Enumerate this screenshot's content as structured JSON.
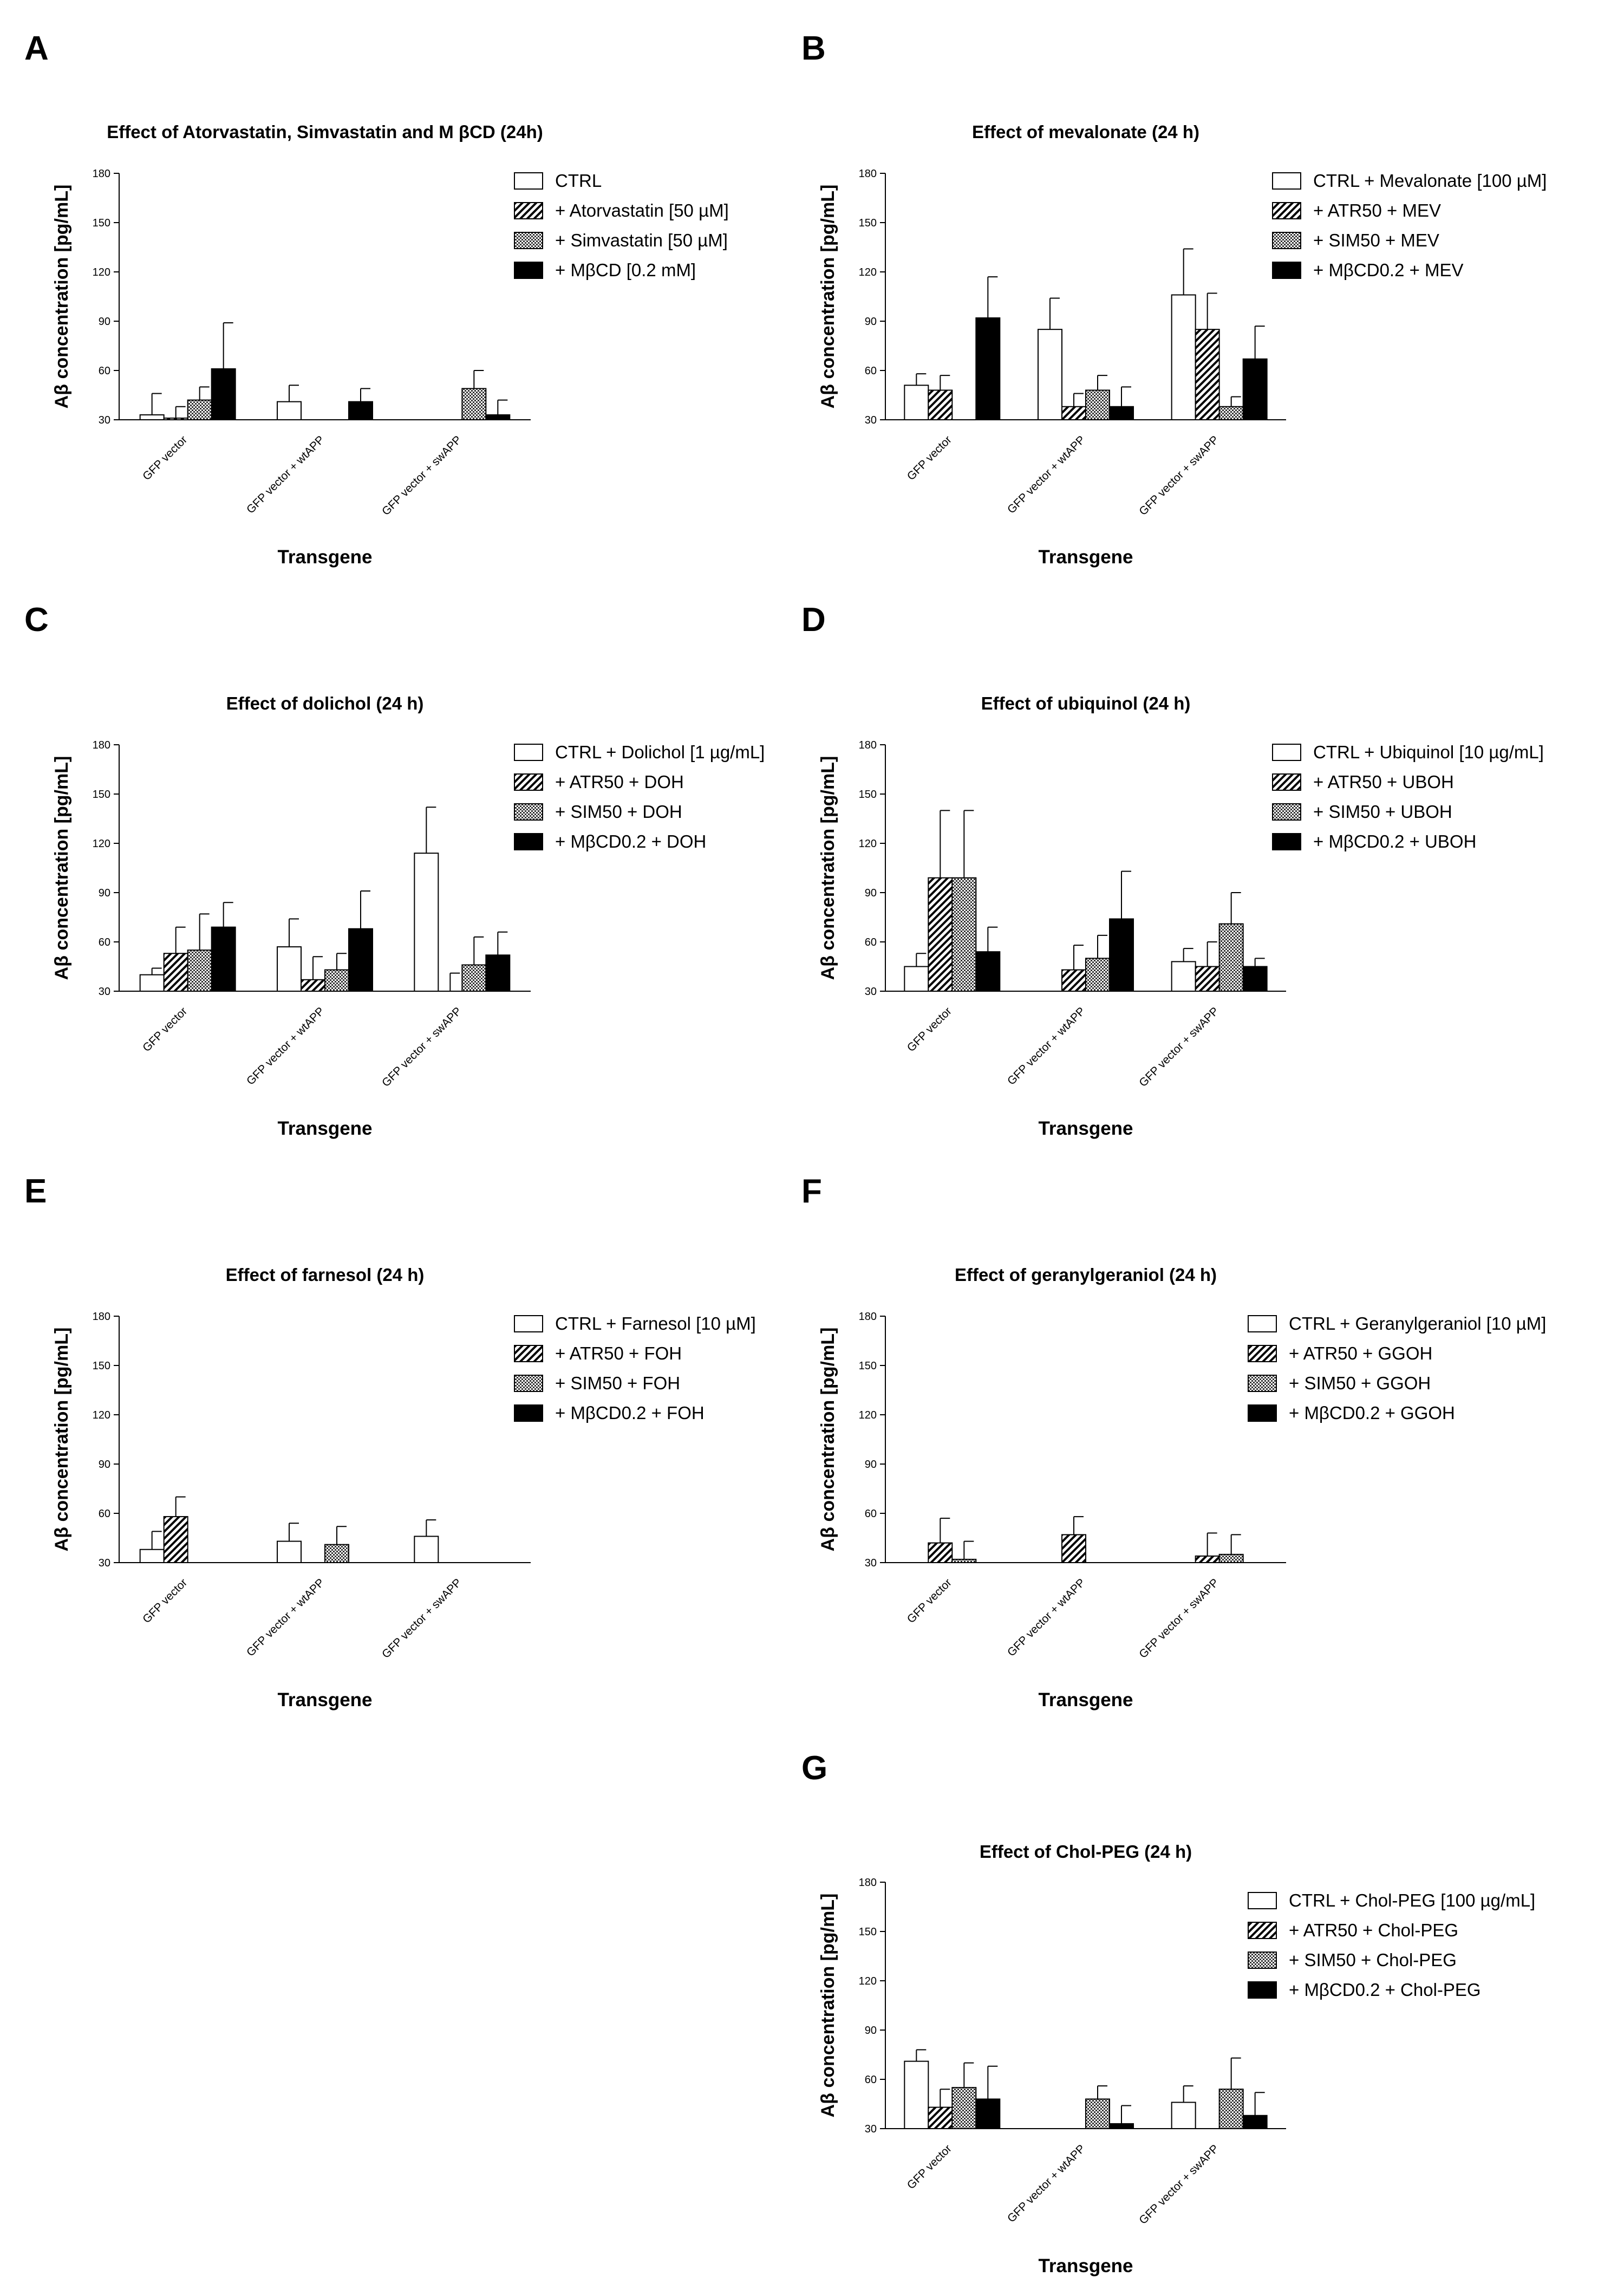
{
  "figure": {
    "series_styles": [
      {
        "key": "ctrl",
        "fill": "#ffffff"
      },
      {
        "key": "atr",
        "fill": "pattern-diagonal-hatch"
      },
      {
        "key": "sim",
        "fill": "pattern-crosshatch"
      },
      {
        "key": "mbcd",
        "fill": "#000000"
      }
    ]
  },
  "chart_data": [
    {
      "panel": "A",
      "type": "bar",
      "title": "Effect of Atorvastatin, Simvastatin and M βCD (24h)",
      "xlabel": "Transgene",
      "ylabel": "Aβ concentration [pg/mL]",
      "ylim": [
        30,
        180
      ],
      "yticks": [
        30,
        60,
        90,
        120,
        150,
        180
      ],
      "categories": [
        "GFP vector",
        "GFP vector + wtAPP",
        "GFP vector + swAPP"
      ],
      "legend": [
        "CTRL",
        "+ Atorvastatin [50 µM]",
        "+ Simvastatin [50 µM]",
        "+ MβCD [0.2 mM]"
      ],
      "series": [
        {
          "name": "CTRL",
          "values": [
            33,
            41,
            30
          ],
          "errors": [
            13,
            10,
            0
          ]
        },
        {
          "name": "+ Atorvastatin [50 µM]",
          "values": [
            31,
            30,
            30
          ],
          "errors": [
            7,
            0,
            0
          ]
        },
        {
          "name": "+ Simvastatin [50 µM]",
          "values": [
            42,
            30,
            49
          ],
          "errors": [
            8,
            0,
            11
          ]
        },
        {
          "name": "+ MβCD [0.2 mM]",
          "values": [
            61,
            41,
            33
          ],
          "errors": [
            28,
            8,
            9
          ]
        }
      ]
    },
    {
      "panel": "B",
      "type": "bar",
      "title": "Effect of mevalonate (24 h)",
      "xlabel": "Transgene",
      "ylabel": "Aβ concentration [pg/mL]",
      "ylim": [
        30,
        180
      ],
      "yticks": [
        30,
        60,
        90,
        120,
        150,
        180
      ],
      "categories": [
        "GFP vector",
        "GFP vector + wtAPP",
        "GFP vector + swAPP"
      ],
      "legend": [
        "CTRL + Mevalonate [100 µM]",
        "+ ATR50 + MEV",
        "+ SIM50 + MEV",
        "+ MβCD0.2 + MEV"
      ],
      "series": [
        {
          "name": "CTRL + Mevalonate [100 µM]",
          "values": [
            51,
            85,
            106
          ],
          "errors": [
            7,
            19,
            28
          ]
        },
        {
          "name": "+ ATR50 + MEV",
          "values": [
            48,
            38,
            85
          ],
          "errors": [
            9,
            8,
            22
          ]
        },
        {
          "name": "+ SIM50 + MEV",
          "values": [
            30,
            48,
            38
          ],
          "errors": [
            0,
            9,
            6
          ]
        },
        {
          "name": "+ MβCD0.2 + MEV",
          "values": [
            92,
            38,
            67
          ],
          "errors": [
            25,
            12,
            20
          ]
        }
      ]
    },
    {
      "panel": "C",
      "type": "bar",
      "title": "Effect of dolichol (24 h)",
      "xlabel": "Transgene",
      "ylabel": "Aβ concentration [pg/mL]",
      "ylim": [
        30,
        180
      ],
      "yticks": [
        30,
        60,
        90,
        120,
        150,
        180
      ],
      "categories": [
        "GFP vector",
        "GFP vector + wtAPP",
        "GFP vector + swAPP"
      ],
      "legend": [
        "CTRL + Dolichol [1 µg/mL]",
        "+ ATR50 + DOH",
        "+ SIM50 + DOH",
        "+ MβCD0.2 + DOH"
      ],
      "series": [
        {
          "name": "CTRL + Dolichol [1 µg/mL]",
          "values": [
            40,
            57,
            114
          ],
          "errors": [
            4,
            17,
            28
          ]
        },
        {
          "name": "+ ATR50 + DOH",
          "values": [
            53,
            37,
            30
          ],
          "errors": [
            16,
            14,
            11
          ]
        },
        {
          "name": "+ SIM50 + DOH",
          "values": [
            55,
            43,
            46
          ],
          "errors": [
            22,
            10,
            17
          ]
        },
        {
          "name": "+ MβCD0.2 + DOH",
          "values": [
            69,
            68,
            52
          ],
          "errors": [
            15,
            23,
            14
          ]
        }
      ]
    },
    {
      "panel": "D",
      "type": "bar",
      "title": "Effect of ubiquinol (24 h)",
      "xlabel": "Transgene",
      "ylabel": "Aβ concentration [pg/mL]",
      "ylim": [
        30,
        180
      ],
      "yticks": [
        30,
        60,
        90,
        120,
        150,
        180
      ],
      "categories": [
        "GFP vector",
        "GFP vector + wtAPP",
        "GFP vector + swAPP"
      ],
      "legend": [
        "CTRL + Ubiquinol [10 µg/mL]",
        "+ ATR50 + UBOH",
        "+ SIM50 + UBOH",
        "+ MβCD0.2 + UBOH"
      ],
      "series": [
        {
          "name": "CTRL + Ubiquinol [10 µg/mL]",
          "values": [
            45,
            30,
            48
          ],
          "errors": [
            8,
            0,
            8
          ]
        },
        {
          "name": "+ ATR50 + UBOH",
          "values": [
            99,
            43,
            45
          ],
          "errors": [
            41,
            15,
            15
          ]
        },
        {
          "name": "+ SIM50 + UBOH",
          "values": [
            99,
            50,
            71
          ],
          "errors": [
            41,
            14,
            19
          ]
        },
        {
          "name": "+ MβCD0.2 + UBOH",
          "values": [
            54,
            74,
            45
          ],
          "errors": [
            15,
            29,
            5
          ]
        }
      ]
    },
    {
      "panel": "E",
      "type": "bar",
      "title": "Effect of farnesol (24 h)",
      "xlabel": "Transgene",
      "ylabel": "Aβ concentration [pg/mL]",
      "ylim": [
        30,
        180
      ],
      "yticks": [
        30,
        60,
        90,
        120,
        150,
        180
      ],
      "categories": [
        "GFP vector",
        "GFP vector + wtAPP",
        "GFP vector + swAPP"
      ],
      "legend": [
        "CTRL + Farnesol [10 µM]",
        "+ ATR50 + FOH",
        "+ SIM50 + FOH",
        "+ MβCD0.2 + FOH"
      ],
      "series": [
        {
          "name": "CTRL + Farnesol [10 µM]",
          "values": [
            38,
            43,
            46
          ],
          "errors": [
            11,
            11,
            10
          ]
        },
        {
          "name": "+ ATR50 + FOH",
          "values": [
            58,
            30,
            30
          ],
          "errors": [
            12,
            0,
            0
          ]
        },
        {
          "name": "+ SIM50 + FOH",
          "values": [
            30,
            41,
            30
          ],
          "errors": [
            0,
            11,
            0
          ]
        },
        {
          "name": "+ MβCD0.2 + FOH",
          "values": [
            30,
            30,
            30
          ],
          "errors": [
            0,
            0,
            0
          ]
        }
      ]
    },
    {
      "panel": "F",
      "type": "bar",
      "title": "Effect of geranylgeraniol (24 h)",
      "xlabel": "Transgene",
      "ylabel": "Aβ concentration [pg/mL]",
      "ylim": [
        30,
        180
      ],
      "yticks": [
        30,
        60,
        90,
        120,
        150,
        180
      ],
      "categories": [
        "GFP vector",
        "GFP vector + wtAPP",
        "GFP vector + swAPP"
      ],
      "legend": [
        "CTRL + Geranylgeraniol [10 µM]",
        "+ ATR50 + GGOH",
        "+ SIM50 + GGOH",
        "+ MβCD0.2 + GGOH"
      ],
      "series": [
        {
          "name": "CTRL + Geranylgeraniol [10 µM]",
          "values": [
            30,
            30,
            30
          ],
          "errors": [
            0,
            0,
            0
          ]
        },
        {
          "name": "+ ATR50 + GGOH",
          "values": [
            42,
            47,
            34
          ],
          "errors": [
            15,
            11,
            14
          ]
        },
        {
          "name": "+ SIM50 + GGOH",
          "values": [
            32,
            30,
            35
          ],
          "errors": [
            11,
            0,
            12
          ]
        },
        {
          "name": "+ MβCD0.2 + GGOH",
          "values": [
            30,
            30,
            30
          ],
          "errors": [
            0,
            0,
            0
          ]
        }
      ]
    },
    {
      "panel": "G",
      "type": "bar",
      "title": "Effect of Chol-PEG (24 h)",
      "xlabel": "Transgene",
      "ylabel": "Aβ concentration [pg/mL]",
      "ylim": [
        30,
        180
      ],
      "yticks": [
        30,
        60,
        90,
        120,
        150,
        180
      ],
      "categories": [
        "GFP vector",
        "GFP vector + wtAPP",
        "GFP vector + swAPP"
      ],
      "legend": [
        "CTRL + Chol-PEG [100 µg/mL]",
        "+ ATR50 + Chol-PEG",
        "+ SIM50 + Chol-PEG",
        "+ MβCD0.2 + Chol-PEG"
      ],
      "series": [
        {
          "name": "CTRL + Chol-PEG [100 µg/mL]",
          "values": [
            71,
            30,
            46
          ],
          "errors": [
            7,
            0,
            10
          ]
        },
        {
          "name": "+ ATR50 + Chol-PEG",
          "values": [
            43,
            30,
            30
          ],
          "errors": [
            11,
            0,
            0
          ]
        },
        {
          "name": "+ SIM50 + Chol-PEG",
          "values": [
            55,
            48,
            54
          ],
          "errors": [
            15,
            8,
            19
          ]
        },
        {
          "name": "+ MβCD0.2 + Chol-PEG",
          "values": [
            48,
            33,
            38
          ],
          "errors": [
            20,
            11,
            14
          ]
        }
      ]
    }
  ]
}
